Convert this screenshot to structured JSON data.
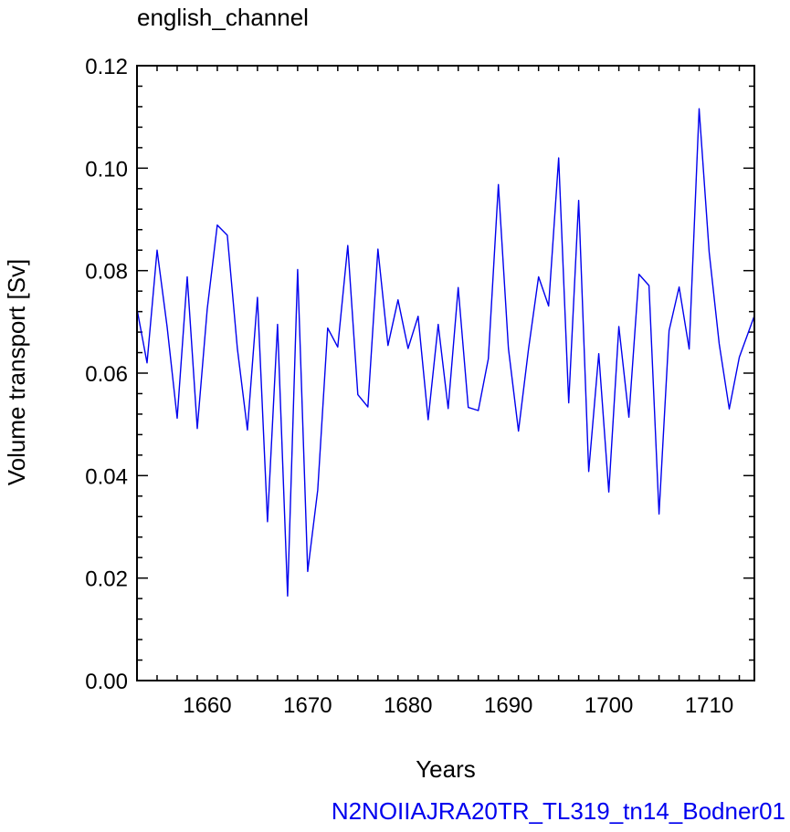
{
  "chart_data": {
    "type": "line",
    "title": "english_channel",
    "xlabel": "Years",
    "ylabel": "Volume transport [Sv]",
    "footer": "N2NOIIAJRA20TR_TL319_tn14_Bodner01",
    "xlim": [
      1653,
      1714.5
    ],
    "ylim": [
      0,
      0.12
    ],
    "x_ticks": [
      1660,
      1670,
      1680,
      1690,
      1700,
      1710
    ],
    "x_tick_labels": [
      "1660",
      "1670",
      "1680",
      "1690",
      "1700",
      "1710"
    ],
    "y_ticks": [
      0,
      0.02,
      0.04,
      0.06,
      0.08,
      0.1,
      0.12
    ],
    "y_tick_labels": [
      "0.00",
      "0.02",
      "0.04",
      "0.06",
      "0.08",
      "0.10",
      "0.12"
    ],
    "grid": false,
    "line_color": "#0000ee",
    "footer_color": "#0000ee",
    "series": [
      {
        "x": [
          1653,
          1654,
          1655,
          1656,
          1657,
          1658,
          1659,
          1660,
          1661,
          1662,
          1663,
          1664,
          1665,
          1666,
          1667,
          1668,
          1669,
          1670,
          1671,
          1672,
          1673,
          1674,
          1675,
          1676,
          1677,
          1678,
          1679,
          1680,
          1681,
          1682,
          1683,
          1684,
          1685,
          1686,
          1687,
          1688,
          1689,
          1690,
          1691,
          1692,
          1693,
          1694,
          1695,
          1696,
          1697,
          1698,
          1699,
          1700,
          1701,
          1702,
          1703,
          1704,
          1705,
          1706,
          1707,
          1708,
          1709,
          1710,
          1711,
          1712,
          1713,
          1714.5
        ],
        "values": [
          0.0725,
          0.062,
          0.084,
          0.069,
          0.0512,
          0.0788,
          0.0492,
          0.0725,
          0.0889,
          0.0869,
          0.0648,
          0.0489,
          0.0748,
          0.031,
          0.0695,
          0.0165,
          0.0802,
          0.0213,
          0.0372,
          0.0688,
          0.0651,
          0.0849,
          0.0558,
          0.0534,
          0.0842,
          0.0654,
          0.0743,
          0.0648,
          0.0711,
          0.0509,
          0.0695,
          0.0531,
          0.0767,
          0.0533,
          0.0527,
          0.0628,
          0.0968,
          0.0648,
          0.0487,
          0.0647,
          0.0788,
          0.0731,
          0.102,
          0.0542,
          0.0937,
          0.0408,
          0.0638,
          0.0368,
          0.0691,
          0.0514,
          0.0793,
          0.0771,
          0.0325,
          0.0683,
          0.0768,
          0.0647,
          0.1116,
          0.0836,
          0.0657,
          0.053,
          0.0631,
          0.0712
        ]
      }
    ]
  }
}
